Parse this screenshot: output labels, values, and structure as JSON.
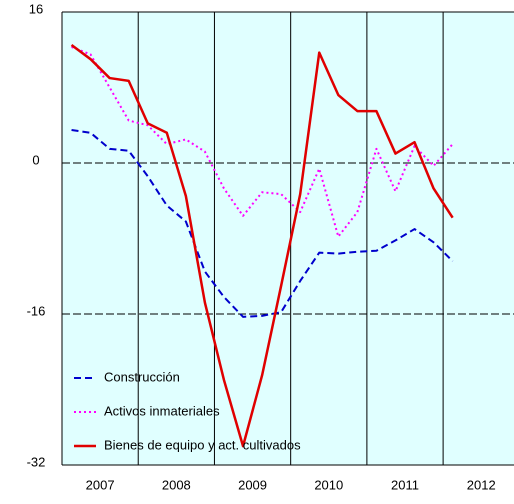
{
  "chart_data": {
    "type": "line",
    "x": [
      2007.125,
      2007.375,
      2007.625,
      2007.875,
      2008.125,
      2008.375,
      2008.625,
      2008.875,
      2009.125,
      2009.375,
      2009.625,
      2009.875,
      2010.125,
      2010.375,
      2010.625,
      2010.875,
      2011.125,
      2011.375,
      2011.625,
      2011.875,
      2012.125
    ],
    "xlim": [
      2007,
      2012.93
    ],
    "xticks": [
      {
        "value": 2007.5,
        "label": "2007"
      },
      {
        "value": 2008.5,
        "label": "2008"
      },
      {
        "value": 2009.5,
        "label": "2009"
      },
      {
        "value": 2010.5,
        "label": "2010"
      },
      {
        "value": 2011.5,
        "label": "2011"
      },
      {
        "value": 2012.5,
        "label": "2012"
      }
    ],
    "ylim": [
      -32,
      16
    ],
    "yticks": [
      -32,
      -16,
      0,
      16
    ],
    "grid": true,
    "legend": "lower left",
    "series": [
      {
        "name": "Construcción",
        "color": "#0000cc",
        "style": "dashed",
        "values": [
          3.5,
          3.2,
          1.5,
          1.3,
          -1.4,
          -4.5,
          -6.2,
          -11.5,
          -14.2,
          -16.3,
          -16.2,
          -15.8,
          -12.5,
          -9.5,
          -9.6,
          -9.4,
          -9.3,
          -8.2,
          -7.0,
          -8.4,
          -10.4
        ]
      },
      {
        "name": "Activos inmateriales",
        "color": "#ff00ff",
        "style": "dotted",
        "values": [
          12.3,
          11.5,
          8.0,
          4.5,
          4.0,
          2.0,
          2.5,
          1.2,
          -2.7,
          -5.6,
          -3.1,
          -3.3,
          -5.2,
          -0.6,
          -7.8,
          -5.2,
          1.5,
          -3.0,
          1.8,
          -0.3,
          2.0
        ]
      },
      {
        "name": "Bienes de equipo y act. cultivados",
        "color": "#e00000",
        "style": "solid",
        "values": [
          12.5,
          11.0,
          9.0,
          8.7,
          4.2,
          3.2,
          -3.5,
          -14.8,
          -23.0,
          -30.0,
          -22.5,
          -13.0,
          -3.3,
          11.7,
          7.2,
          5.5,
          5.5,
          1.0,
          2.2,
          -2.7,
          -5.8
        ]
      }
    ]
  }
}
